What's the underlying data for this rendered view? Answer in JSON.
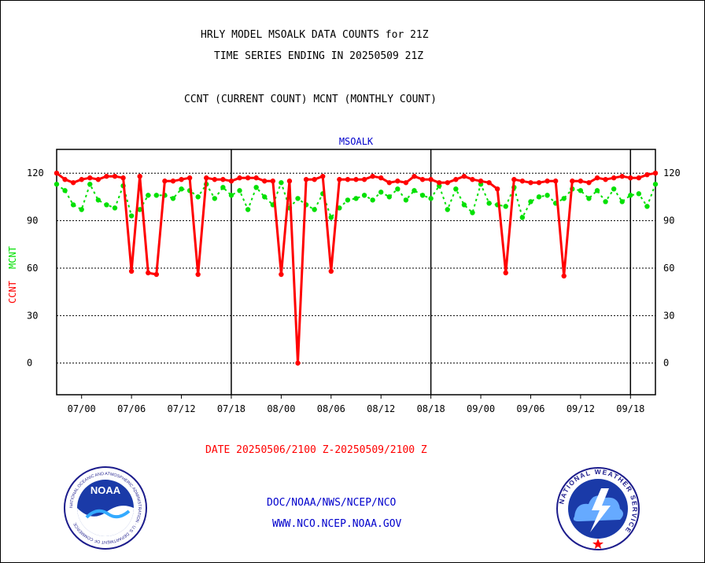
{
  "header": {
    "line1": "HRLY MODEL MSOALK DATA COUNTS for 21Z",
    "line2": "TIME SERIES ENDING IN 20250509 21Z",
    "line3": "CCNT (CURRENT COUNT) MCNT (MONTHLY COUNT)"
  },
  "footer": {
    "date_range": "DATE 20250506/2100 Z-20250509/2100 Z",
    "org": "DOC/NOAA/NWS/NCEP/NCO",
    "url": "WWW.NCO.NCEP.NOAA.GOV"
  },
  "logos": {
    "noaa": {
      "label": "NOAA",
      "ring_text": "NATIONAL OCEANIC AND ATMOSPHERIC ADMINISTRATION · U.S. DEPARTMENT OF COMMERCE"
    },
    "nws": {
      "ring_text": "NATIONAL WEATHER SERVICE"
    }
  },
  "chart_data": {
    "type": "line",
    "title": "MSOALK",
    "ylabel_ccnt": "CCNT",
    "ylabel_mcnt": "MCNT",
    "ylim": [
      -20,
      135
    ],
    "yticks": [
      0,
      30,
      60,
      90,
      120
    ],
    "xticks": [
      "07/00",
      "07/06",
      "07/12",
      "07/18",
      "08/00",
      "08/06",
      "08/12",
      "08/18",
      "09/00",
      "09/06",
      "09/12",
      "09/18"
    ],
    "xtick_hours": [
      3,
      9,
      15,
      21,
      27,
      33,
      39,
      45,
      51,
      57,
      63,
      69
    ],
    "xlim": [
      0,
      72
    ],
    "day_boundaries": [
      21,
      45,
      69
    ],
    "grid": true,
    "colors": {
      "ccnt": "#ff0000",
      "mcnt": "#00e000",
      "title": "#0000cc"
    },
    "series": [
      {
        "name": "CCNT",
        "x": [
          0,
          1,
          2,
          3,
          4,
          5,
          6,
          7,
          8,
          9,
          10,
          11,
          12,
          13,
          14,
          15,
          16,
          17,
          18,
          19,
          20,
          21,
          22,
          23,
          24,
          25,
          26,
          27,
          28,
          29,
          30,
          31,
          32,
          33,
          34,
          35,
          36,
          37,
          38,
          39,
          40,
          41,
          42,
          43,
          44,
          45,
          46,
          47,
          48,
          49,
          50,
          51,
          52,
          53,
          54,
          55,
          56,
          57,
          58,
          59,
          60,
          61,
          62,
          63,
          64,
          65,
          66,
          67,
          68,
          69,
          70,
          71,
          72
        ],
        "values": [
          120,
          116,
          114,
          116,
          117,
          116,
          118,
          118,
          117,
          58,
          118,
          57,
          56,
          115,
          115,
          116,
          117,
          56,
          117,
          116,
          116,
          115,
          117,
          117,
          117,
          115,
          115,
          56,
          115,
          0,
          116,
          116,
          118,
          58,
          116,
          116,
          116,
          116,
          118,
          117,
          114,
          115,
          114,
          118,
          116,
          116,
          114,
          114,
          116,
          118,
          116,
          115,
          114,
          110,
          57,
          116,
          115,
          114,
          114,
          115,
          115,
          55,
          115,
          115,
          114,
          117,
          116,
          117,
          118,
          117,
          117,
          119,
          120
        ]
      },
      {
        "name": "MCNT",
        "x": [
          0,
          1,
          2,
          3,
          4,
          5,
          6,
          7,
          8,
          9,
          10,
          11,
          12,
          13,
          14,
          15,
          16,
          17,
          18,
          19,
          20,
          21,
          22,
          23,
          24,
          25,
          26,
          27,
          28,
          29,
          30,
          31,
          32,
          33,
          34,
          35,
          36,
          37,
          38,
          39,
          40,
          41,
          42,
          43,
          44,
          45,
          46,
          47,
          48,
          49,
          50,
          51,
          52,
          53,
          54,
          55,
          56,
          57,
          58,
          59,
          60,
          61,
          62,
          63,
          64,
          65,
          66,
          67,
          68,
          69,
          70,
          71,
          72
        ],
        "values": [
          113,
          109,
          100,
          97,
          113,
          103,
          100,
          98,
          112,
          93,
          97,
          106,
          106,
          106,
          104,
          110,
          109,
          105,
          113,
          104,
          111,
          106,
          109,
          97,
          111,
          105,
          100,
          114,
          98,
          104,
          100,
          97,
          107,
          92,
          98,
          103,
          104,
          106,
          103,
          108,
          105,
          110,
          103,
          109,
          106,
          104,
          112,
          97,
          110,
          100,
          95,
          113,
          101,
          100,
          99,
          111,
          92,
          102,
          105,
          106,
          101,
          104,
          110,
          109,
          104,
          109,
          102,
          110,
          102,
          106,
          107,
          99,
          113
        ]
      }
    ]
  }
}
